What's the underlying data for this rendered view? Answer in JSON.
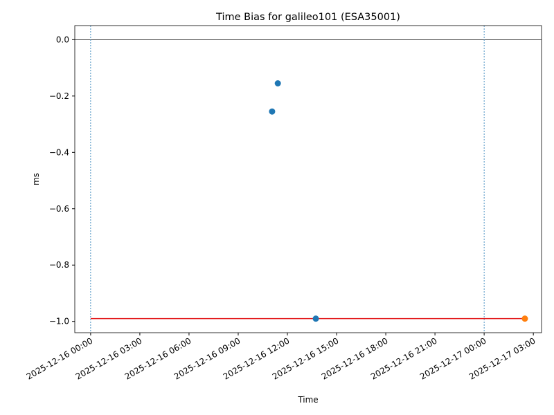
{
  "chart_data": {
    "type": "scatter",
    "title": "Time Bias for galileo101 (ESA35001)",
    "x_label": "Time",
    "y_label": "ms",
    "xlim": [
      "2025-12-15 23:02",
      "2025-12-17 03:30"
    ],
    "xticks": [
      "2025-12-16 00:00",
      "2025-12-16 03:00",
      "2025-12-16 06:00",
      "2025-12-16 09:00",
      "2025-12-16 12:00",
      "2025-12-16 15:00",
      "2025-12-16 18:00",
      "2025-12-16 21:00",
      "2025-12-17 00:00",
      "2025-12-17 03:00"
    ],
    "ylim": [
      -1.04,
      0.05
    ],
    "yticks": [
      {
        "value": 0,
        "label": "0.0"
      },
      {
        "value": -0.2,
        "label": "−0.2"
      },
      {
        "value": -0.4,
        "label": "−0.4"
      },
      {
        "value": -0.6,
        "label": "−0.6"
      },
      {
        "value": -0.8,
        "label": "−0.8"
      },
      {
        "value": -1,
        "label": "−1.0"
      }
    ],
    "series": [
      {
        "color": "#1f77b4",
        "style": "points",
        "x": [
          "2025-12-16 11:04",
          "2025-12-16 11:25",
          "2025-12-16 13:44"
        ],
        "values": [
          -0.255,
          -0.155,
          -0.99
        ]
      },
      {
        "color": "#ff7f0e",
        "style": "points",
        "x": [
          "2025-12-17 02:29"
        ],
        "values": [
          -0.99
        ]
      },
      {
        "color": "#e31a1c",
        "style": "line",
        "x": [
          "2025-12-16 00:00",
          "2025-12-17 02:29"
        ],
        "values": [
          -0.99,
          -0.99
        ]
      }
    ],
    "vlines": {
      "color": "#1f77b4",
      "x": [
        "2025-12-16 00:00",
        "2025-12-17 00:00"
      ]
    },
    "hline": {
      "color": "#000000",
      "value": 0
    }
  }
}
